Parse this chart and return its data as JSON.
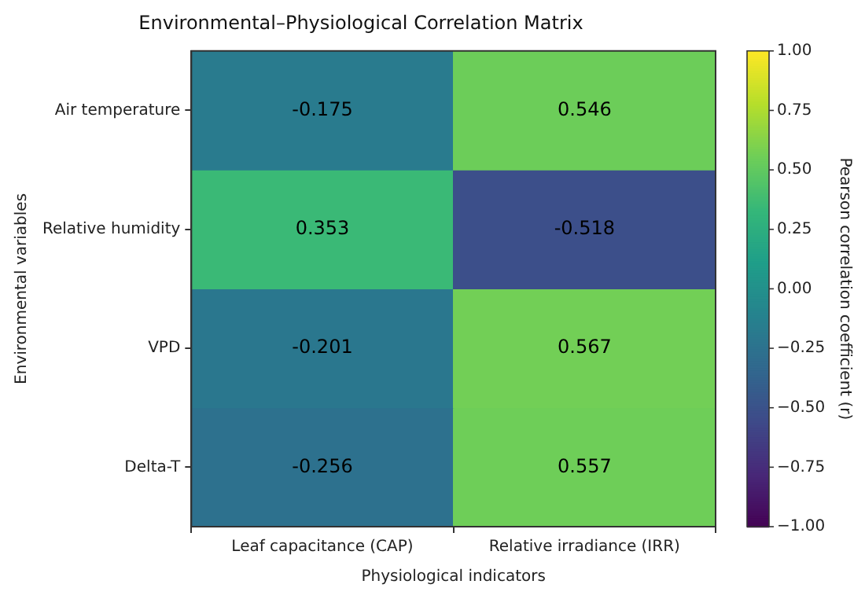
{
  "chart_data": {
    "type": "heatmap",
    "title": "Environmental–Physiological Correlation Matrix",
    "xlabel": "Physiological indicators",
    "ylabel": "Environmental variables",
    "clabel": "Pearson correlation coefficient (r)",
    "categories": [
      "Leaf capacitance (CAP)",
      "Relative irradiance (IRR)"
    ],
    "y_categories": [
      "Air temperature",
      "Relative humidity",
      "VPD",
      "Delta-T"
    ],
    "cells": [
      [
        -0.175,
        0.546
      ],
      [
        0.353,
        -0.518
      ],
      [
        -0.201,
        0.567
      ],
      [
        -0.256,
        0.557
      ]
    ],
    "data_labels": true,
    "clim": [
      -1,
      1
    ],
    "cticks": [
      {
        "value": -1,
        "label": "−1.00"
      },
      {
        "value": -0.75,
        "label": "−0.75"
      },
      {
        "value": -0.5,
        "label": "−0.50"
      },
      {
        "value": -0.25,
        "label": "−0.25"
      },
      {
        "value": 0,
        "label": "0.00"
      },
      {
        "value": 0.25,
        "label": "0.25"
      },
      {
        "value": 0.5,
        "label": "0.50"
      },
      {
        "value": 0.75,
        "label": "0.75"
      },
      {
        "value": 1,
        "label": "1.00"
      }
    ]
  }
}
